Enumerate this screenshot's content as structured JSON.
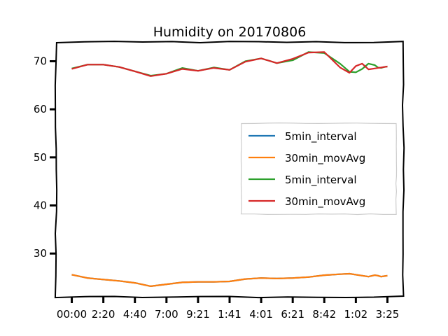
{
  "chart_data": {
    "type": "line",
    "title": "Humidity on 20170806",
    "xlabel": "",
    "ylabel": "",
    "x_tick_labels": [
      "00:00",
      "2:20",
      "4:40",
      "7:00",
      "9:21",
      "1:41",
      "4:01",
      "6:21",
      "8:42",
      "1:02",
      "3:25"
    ],
    "y_ticks": [
      30,
      40,
      50,
      60,
      70
    ],
    "xlim": [
      -0.05,
      1.05
    ],
    "ylim": [
      21,
      74
    ],
    "legend_position": "center-right",
    "grid": false,
    "x": [
      0.0,
      0.05,
      0.1,
      0.15,
      0.2,
      0.25,
      0.3,
      0.35,
      0.4,
      0.45,
      0.5,
      0.55,
      0.6,
      0.65,
      0.7,
      0.75,
      0.8,
      0.85,
      0.88,
      0.9,
      0.92,
      0.94,
      0.96,
      0.97,
      0.98,
      0.99,
      1.0
    ],
    "series": [
      {
        "name": "5min_interval",
        "color": "#1f77b4",
        "values": [
          25.6,
          24.9,
          24.6,
          24.3,
          23.9,
          23.2,
          23.6,
          24.0,
          24.1,
          24.1,
          24.2,
          24.7,
          24.9,
          24.8,
          24.9,
          25.1,
          25.5,
          25.7,
          25.8,
          25.6,
          25.4,
          25.2,
          25.5,
          25.4,
          25.2,
          25.3,
          25.4
        ]
      },
      {
        "name": "30min_movAvg",
        "color": "#ff7f0e",
        "values": [
          25.6,
          24.9,
          24.6,
          24.3,
          23.9,
          23.2,
          23.6,
          24.0,
          24.1,
          24.1,
          24.2,
          24.7,
          24.9,
          24.8,
          24.9,
          25.1,
          25.5,
          25.7,
          25.8,
          25.6,
          25.4,
          25.2,
          25.5,
          25.4,
          25.2,
          25.3,
          25.4
        ]
      },
      {
        "name": "5min_interval",
        "color": "#2ca02c",
        "values": [
          68.5,
          69.3,
          69.3,
          68.8,
          67.9,
          67.0,
          67.4,
          68.6,
          68.0,
          68.7,
          68.2,
          70.0,
          70.6,
          69.6,
          70.2,
          71.9,
          71.7,
          69.5,
          67.8,
          67.7,
          68.4,
          69.5,
          69.2,
          68.7,
          68.6,
          68.8,
          68.9
        ]
      },
      {
        "name": "30min_movAvg",
        "color": "#d62728",
        "values": [
          68.4,
          69.3,
          69.3,
          68.8,
          67.9,
          66.9,
          67.4,
          68.4,
          68.0,
          68.6,
          68.2,
          69.9,
          70.6,
          69.6,
          70.5,
          71.8,
          71.9,
          68.7,
          67.6,
          69.0,
          69.5,
          68.3,
          68.5,
          68.6,
          68.7,
          68.8,
          68.9
        ]
      }
    ]
  }
}
